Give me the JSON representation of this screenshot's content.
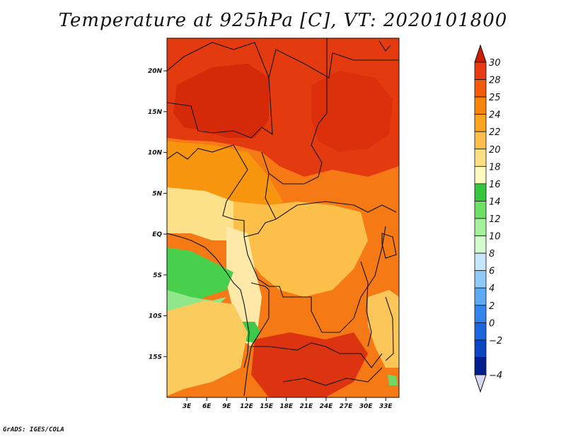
{
  "title": "Temperature at 925hPa [C], VT: 2020101800",
  "footer": "GrADS: IGES/COLA",
  "map": {
    "lon_range": [
      0,
      35
    ],
    "lat_range": [
      -20,
      24
    ],
    "lat_ticks": [
      {
        "value": 20,
        "label": "20N"
      },
      {
        "value": 15,
        "label": "15N"
      },
      {
        "value": 10,
        "label": "10N"
      },
      {
        "value": 5,
        "label": "5N"
      },
      {
        "value": 0,
        "label": "EQ"
      },
      {
        "value": -5,
        "label": "5S"
      },
      {
        "value": -10,
        "label": "10S"
      },
      {
        "value": -15,
        "label": "15S"
      }
    ],
    "lon_ticks": [
      {
        "value": 3,
        "label": "3E"
      },
      {
        "value": 6,
        "label": "6E"
      },
      {
        "value": 9,
        "label": "9E"
      },
      {
        "value": 12,
        "label": "12E"
      },
      {
        "value": 15,
        "label": "15E"
      },
      {
        "value": 18,
        "label": "18E"
      },
      {
        "value": 21,
        "label": "21E"
      },
      {
        "value": 24,
        "label": "24E"
      },
      {
        "value": 27,
        "label": "27E"
      },
      {
        "value": 30,
        "label": "30E"
      },
      {
        "value": 33,
        "label": "33E"
      }
    ]
  },
  "colorbar": {
    "levels": [
      "30",
      "28",
      "25",
      "24",
      "22",
      "20",
      "18",
      "16",
      "14",
      "12",
      "10",
      "8",
      "6",
      "4",
      "2",
      "0",
      "−2",
      "−4"
    ],
    "colors_top_to_bottom": [
      "#e83b12",
      "#f25a0c",
      "#f7860f",
      "#f9a320",
      "#fbbe4b",
      "#fddf83",
      "#fefbbf",
      "#36c73e",
      "#6ee066",
      "#a6f19b",
      "#d4fbd0",
      "#c6e6fb",
      "#8fcaf7",
      "#5daaf4",
      "#3385ec",
      "#1b66dd",
      "#0a46c2",
      "#021d8c"
    ],
    "top_tip_color": "#cc1f00",
    "bottom_tip_color": "#d9d9f5"
  }
}
